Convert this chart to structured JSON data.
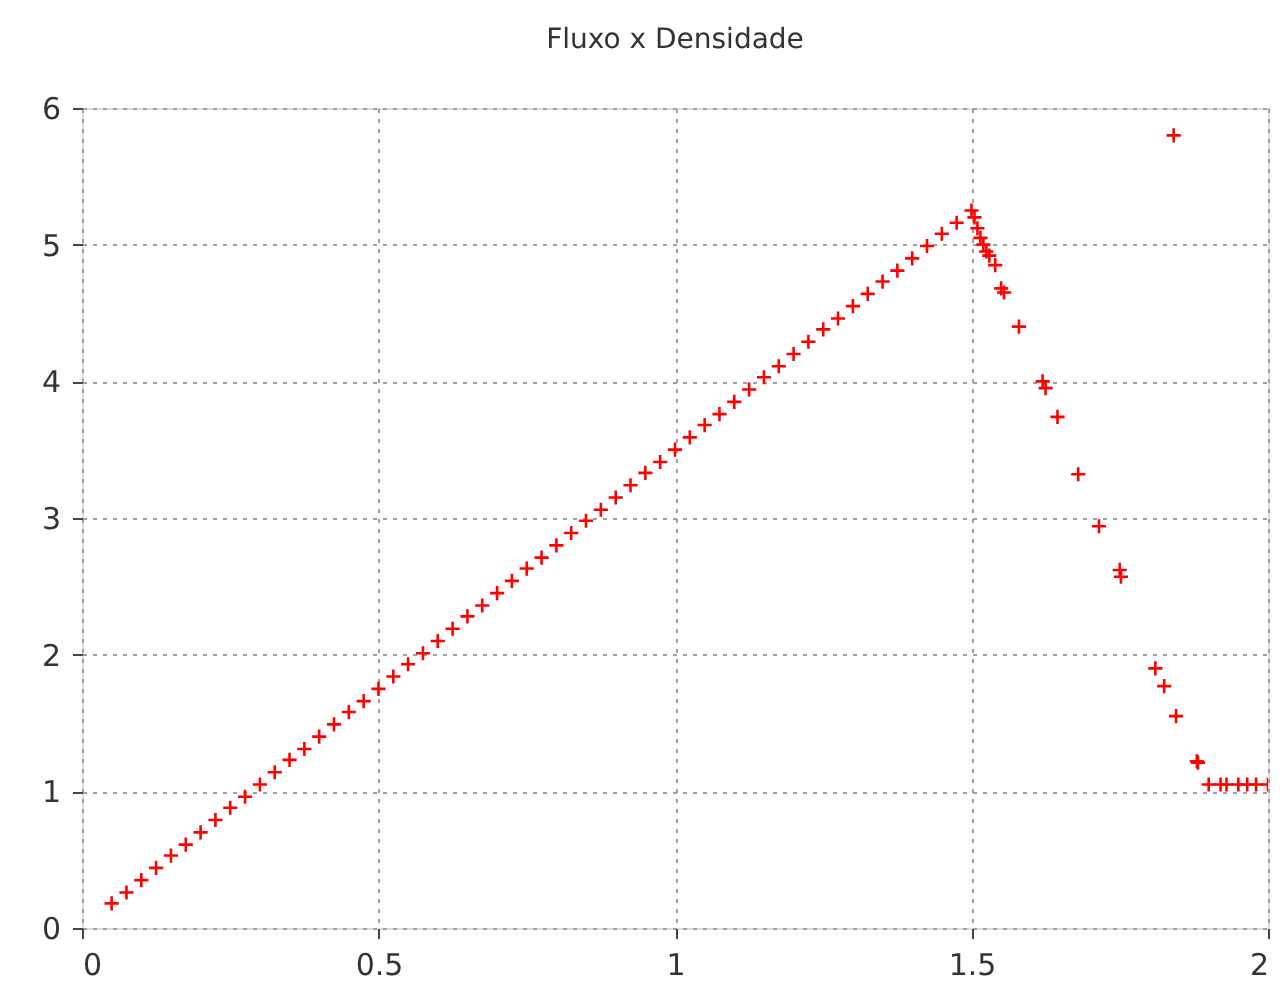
{
  "chart_data": {
    "type": "scatter",
    "title": "Fluxo x Densidade",
    "x": [
      0.05,
      0.075,
      0.1,
      0.125,
      0.15,
      0.175,
      0.2,
      0.225,
      0.25,
      0.275,
      0.3,
      0.325,
      0.35,
      0.375,
      0.4,
      0.425,
      0.45,
      0.475,
      0.5,
      0.525,
      0.55,
      0.575,
      0.6,
      0.625,
      0.65,
      0.675,
      0.7,
      0.725,
      0.75,
      0.775,
      0.8,
      0.825,
      0.85,
      0.875,
      0.9,
      0.925,
      0.95,
      0.975,
      1.0,
      1.025,
      1.05,
      1.075,
      1.1,
      1.125,
      1.15,
      1.175,
      1.2,
      1.225,
      1.25,
      1.275,
      1.3,
      1.325,
      1.35,
      1.375,
      1.4,
      1.425,
      1.45,
      1.475,
      1.5,
      1.505,
      1.51,
      1.515,
      1.52,
      1.525,
      1.53,
      1.54,
      1.55,
      1.555,
      1.58,
      1.62,
      1.625,
      1.645,
      1.68,
      1.715,
      1.75,
      1.752,
      1.81,
      1.825,
      1.841,
      1.845,
      1.88,
      1.882,
      1.9,
      1.92,
      1.93,
      1.95,
      1.965,
      1.98,
      2.0
    ],
    "values": [
      0.18,
      0.26,
      0.35,
      0.44,
      0.53,
      0.61,
      0.7,
      0.79,
      0.88,
      0.96,
      1.05,
      1.14,
      1.23,
      1.31,
      1.4,
      1.49,
      1.58,
      1.66,
      1.75,
      1.84,
      1.93,
      2.01,
      2.1,
      2.19,
      2.28,
      2.36,
      2.45,
      2.54,
      2.63,
      2.71,
      2.8,
      2.89,
      2.98,
      3.06,
      3.15,
      3.24,
      3.33,
      3.41,
      3.5,
      3.59,
      3.68,
      3.76,
      3.85,
      3.94,
      4.03,
      4.11,
      4.2,
      4.29,
      4.38,
      4.46,
      4.55,
      4.64,
      4.73,
      4.81,
      4.9,
      4.99,
      5.08,
      5.16,
      5.25,
      5.2,
      5.12,
      5.05,
      5.0,
      4.95,
      4.92,
      4.85,
      4.68,
      4.65,
      4.4,
      4.0,
      3.95,
      3.74,
      3.32,
      2.94,
      2.62,
      2.57,
      1.9,
      1.77,
      5.8,
      1.55,
      1.22,
      1.21,
      1.05,
      1.05,
      1.05,
      1.05,
      1.05,
      1.05,
      1.05
    ],
    "color": "#ff0000",
    "marker": "cross",
    "xlim": [
      0,
      2
    ],
    "xticks": [
      0,
      0.5,
      1,
      1.5,
      2
    ],
    "ylim": [
      0,
      6
    ],
    "yticks": [
      0,
      1,
      2,
      3,
      4,
      5,
      6
    ],
    "grid": true
  }
}
